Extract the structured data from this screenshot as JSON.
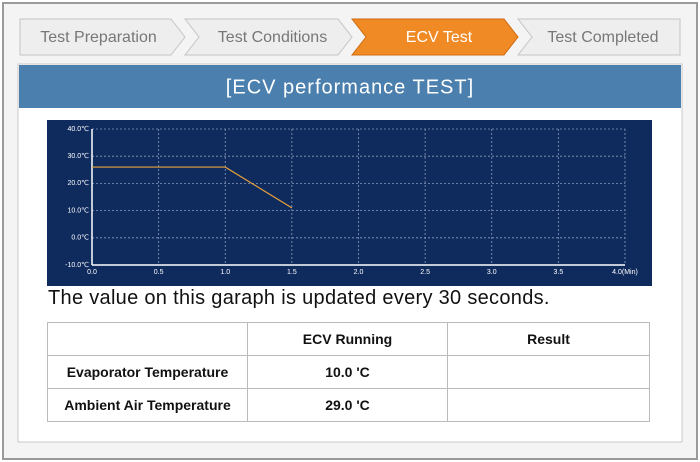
{
  "steps": [
    "Test Preparation",
    "Test Conditions",
    "ECV Test",
    "Test Completed"
  ],
  "active_step": 2,
  "panel": {
    "title": "[ECV performance TEST]"
  },
  "chart_data": {
    "type": "line",
    "x": [
      0,
      1.0,
      1.5
    ],
    "series": [
      {
        "color": "#e8a23a",
        "values": [
          26,
          26,
          11
        ]
      }
    ],
    "xlim": [
      0,
      4
    ],
    "ylim": [
      -10,
      40
    ],
    "xticks": [
      {
        "value": 0,
        "label": "0.0"
      },
      {
        "value": 0.5,
        "label": "0.5"
      },
      {
        "value": 1,
        "label": "1.0"
      },
      {
        "value": 1.5,
        "label": "1.5"
      },
      {
        "value": 2,
        "label": "2.0"
      },
      {
        "value": 2.5,
        "label": "2.5"
      },
      {
        "value": 3,
        "label": "3.0"
      },
      {
        "value": 3.5,
        "label": "3.5"
      },
      {
        "value": 4,
        "label": "4.0(Min)"
      }
    ],
    "yticks": [
      {
        "value": 40,
        "label": "40.0℃"
      },
      {
        "value": 30,
        "label": "30.0℃"
      },
      {
        "value": 20,
        "label": "20.0℃"
      },
      {
        "value": 10,
        "label": "10.0℃"
      },
      {
        "value": 0,
        "label": "0.0℃"
      },
      {
        "value": -10,
        "label": "-10.0℃"
      }
    ],
    "grid": true
  },
  "note": "The value on this garaph is updated every 30 seconds.",
  "table": {
    "columns": [
      "ECV Running",
      "Result"
    ],
    "rows": [
      [
        "Evaporator Temperature",
        "10.0 'C"
      ],
      [
        "Ambient Air Temperature",
        "29.0 'C"
      ]
    ]
  }
}
